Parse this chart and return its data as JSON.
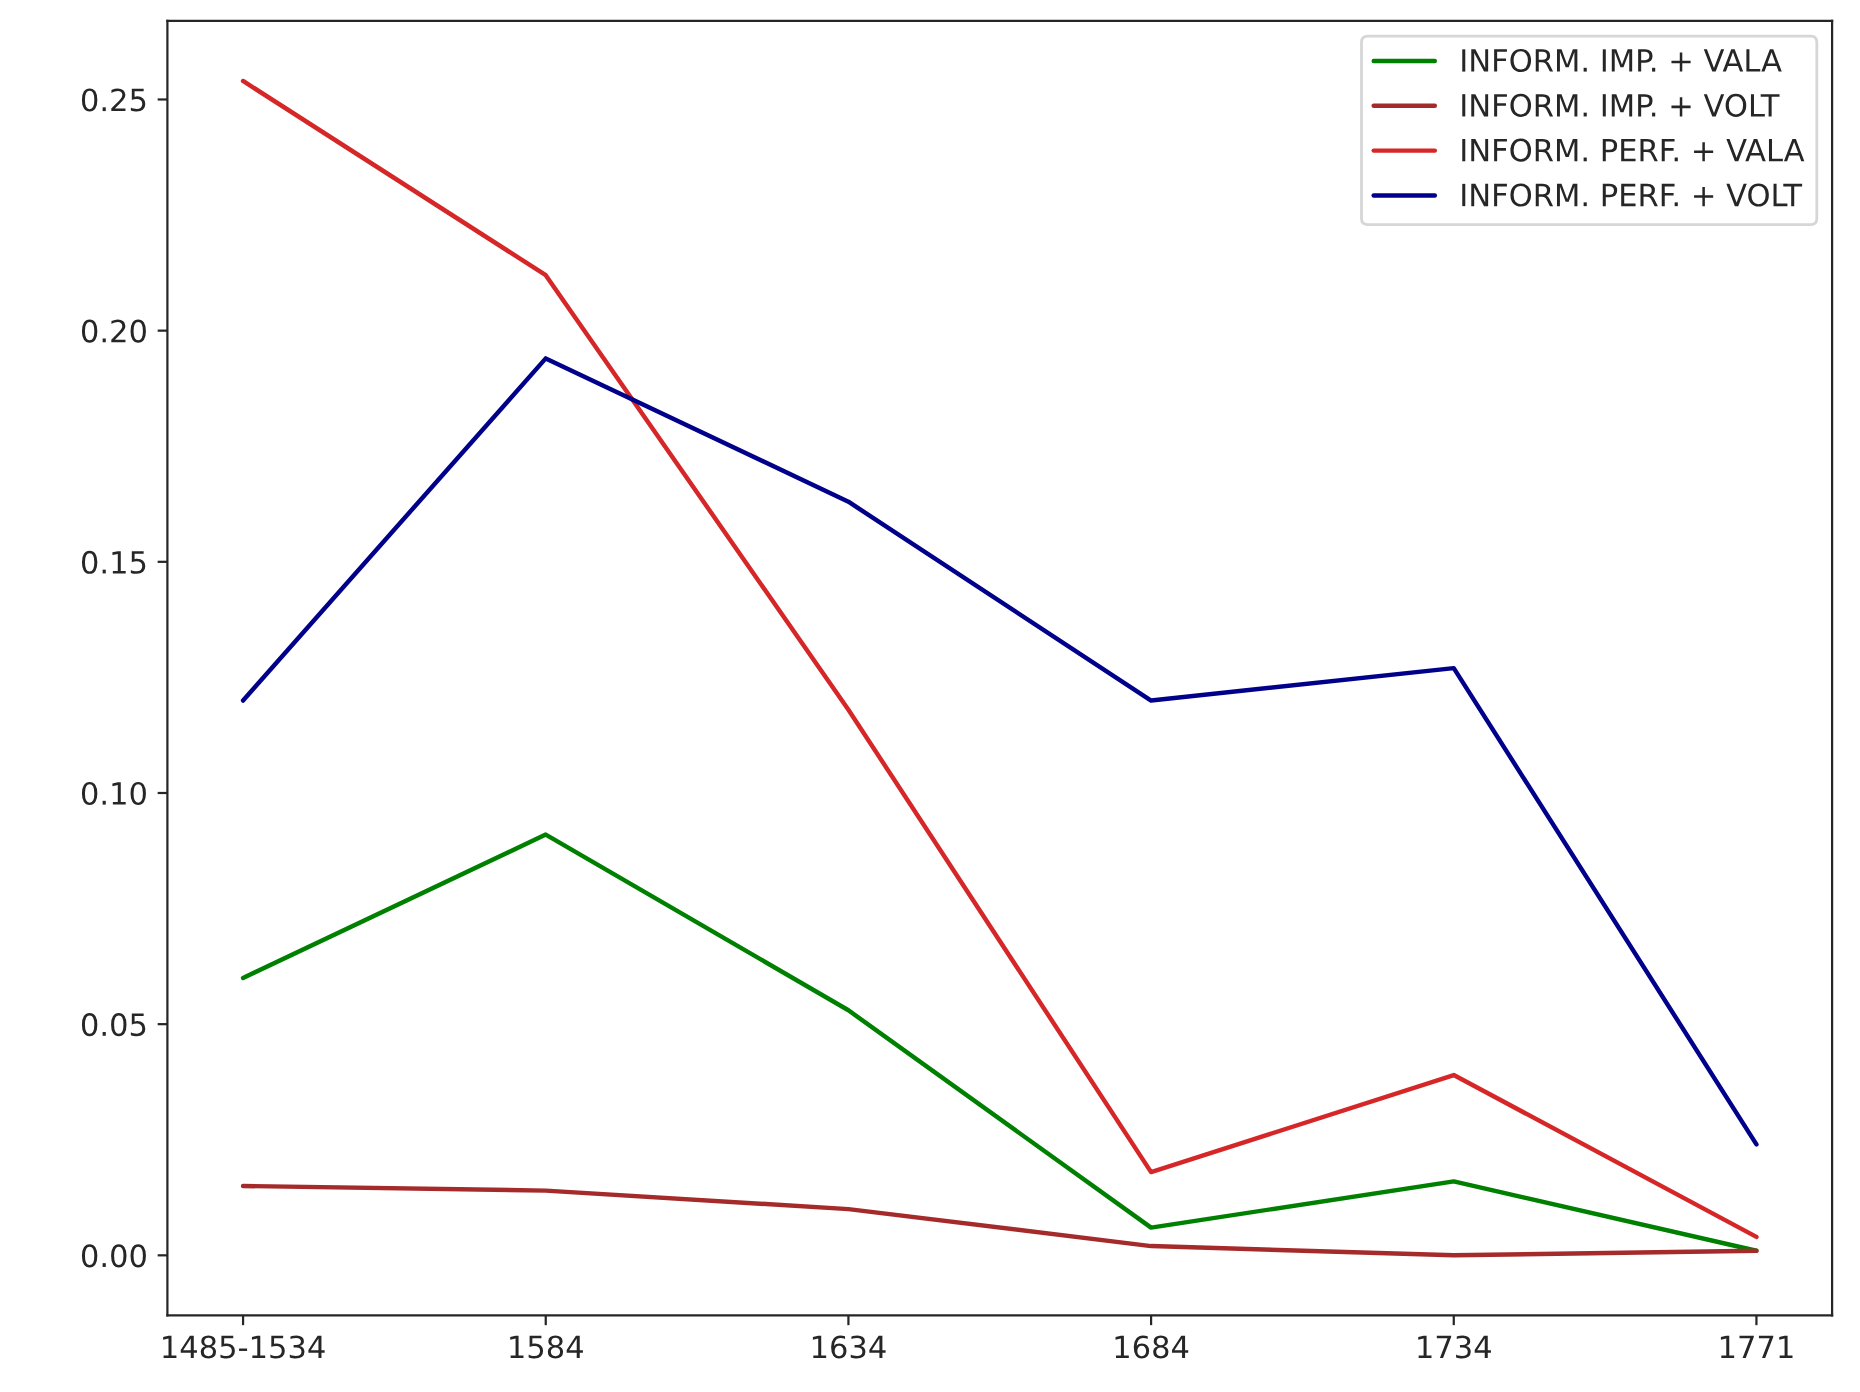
{
  "chart_data": {
    "type": "line",
    "categories": [
      "1485-1534",
      "1584",
      "1634",
      "1684",
      "1734",
      "1771"
    ],
    "series": [
      {
        "name": "INFORM. IMP. + VALA",
        "color": "#008000",
        "values": [
          0.06,
          0.091,
          0.053,
          0.006,
          0.016,
          0.001
        ]
      },
      {
        "name": "INFORM. IMP. + VOLT",
        "color": "#a52a2a",
        "values": [
          0.015,
          0.014,
          0.01,
          0.002,
          0.0,
          0.001
        ]
      },
      {
        "name": "INFORM. PERF. + VALA",
        "color": "#d62728",
        "values": [
          0.254,
          0.212,
          0.118,
          0.018,
          0.039,
          0.004
        ]
      },
      {
        "name": "INFORM. PERF. + VOLT",
        "color": "#00008b",
        "values": [
          0.12,
          0.194,
          0.163,
          0.12,
          0.127,
          0.024
        ]
      }
    ],
    "ylim": [
      -0.013,
      0.267
    ],
    "yticks": [
      {
        "value": 0,
        "label": "0.00"
      },
      {
        "value": 0.05,
        "label": "0.05"
      },
      {
        "value": 0.1,
        "label": "0.10"
      },
      {
        "value": 0.15,
        "label": "0.15"
      },
      {
        "value": 0.2,
        "label": "0.20"
      },
      {
        "value": 0.25,
        "label": "0.25"
      }
    ],
    "legend": "top right",
    "grid": false,
    "marker": "none",
    "line_style": "solid"
  }
}
